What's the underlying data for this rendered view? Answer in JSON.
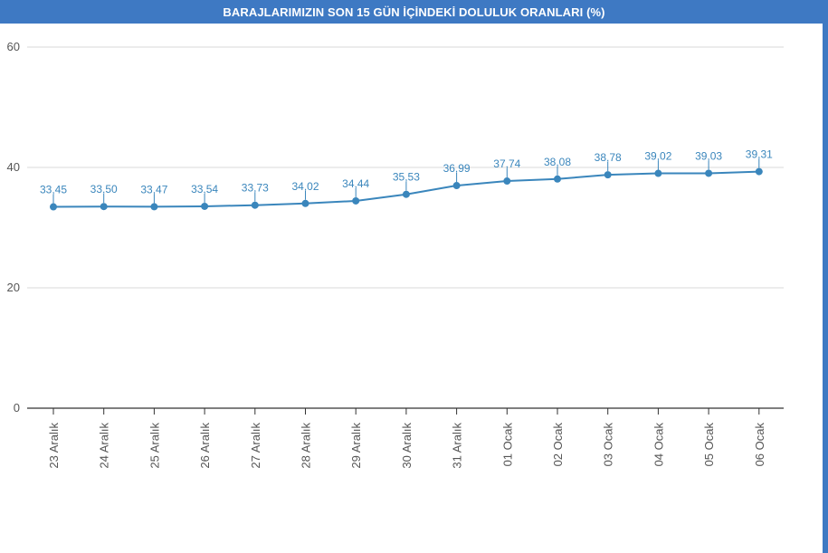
{
  "title": "BARAJLARIMIZIN SON 15 GÜN İÇİNDEKİ DOLULUK ORANLARI (%)",
  "colors": {
    "header": "#3e79c3",
    "series": "#3a86bc",
    "grid": "#d8d8d8",
    "axis": "#333333"
  },
  "chart_data": {
    "type": "line",
    "title": "BARAJLARIMIZIN SON 15 GÜN İÇİNDEKİ DOLULUK ORANLARI (%)",
    "categories": [
      "23 Aralık",
      "24 Aralık",
      "25 Aralık",
      "26 Aralık",
      "27 Aralık",
      "28 Aralık",
      "29 Aralık",
      "30 Aralık",
      "31 Aralık",
      "01 Ocak",
      "02 Ocak",
      "03 Ocak",
      "04 Ocak",
      "05 Ocak",
      "06 Ocak"
    ],
    "values": [
      33.45,
      33.5,
      33.47,
      33.54,
      33.73,
      34.02,
      34.44,
      35.53,
      36.99,
      37.74,
      38.08,
      38.78,
      39.02,
      39.03,
      39.31
    ],
    "data_labels": [
      "33,45",
      "33,50",
      "33,47",
      "33,54",
      "33,73",
      "34,02",
      "34,44",
      "35,53",
      "36,99",
      "37,74",
      "38,08",
      "38,78",
      "39,02",
      "39,03",
      "39,31"
    ],
    "yticks": [
      "0",
      "20",
      "40",
      "60"
    ],
    "ytick_values": [
      0,
      20,
      40,
      60
    ],
    "ylim": [
      0,
      60
    ],
    "xlabel": "",
    "ylabel": "",
    "grid": true,
    "legend": "none"
  }
}
